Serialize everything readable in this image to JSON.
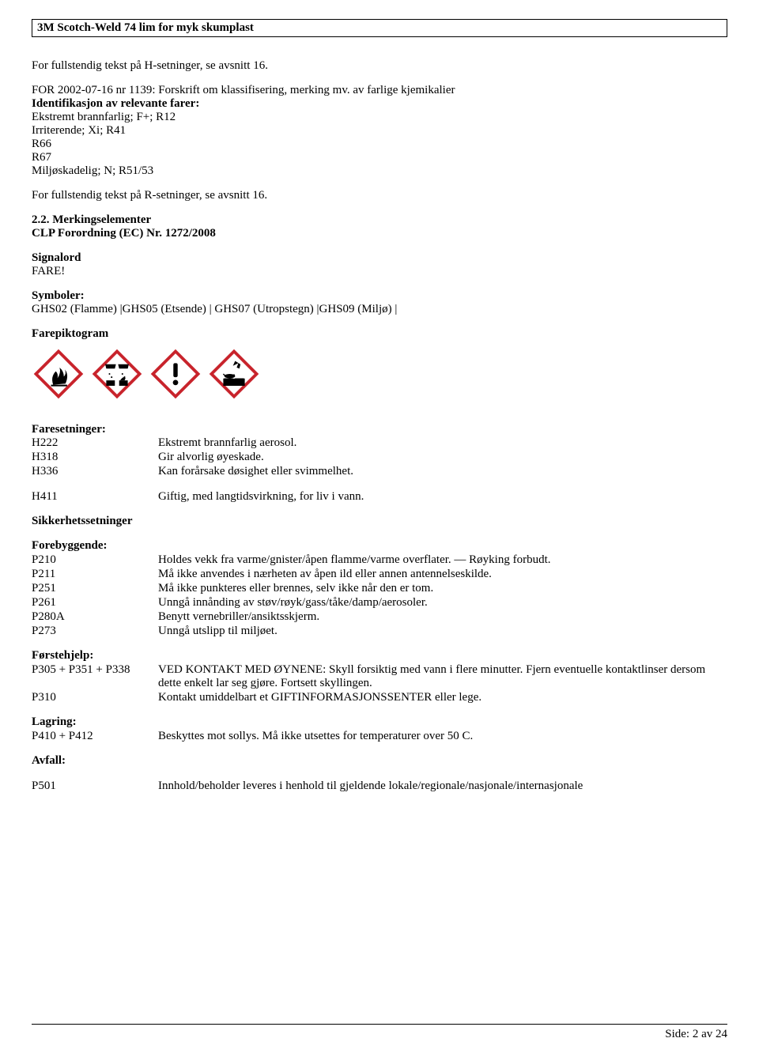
{
  "header": {
    "title": "3M Scotch-Weld 74 lim for myk skumplast"
  },
  "intro": {
    "line1": "For fullstendig tekst på H-setninger, se avsnitt 16.",
    "line2": "FOR 2002-07-16 nr 1139: Forskrift om klassifisering, merking mv. av farlige kjemikalier",
    "ident_heading": "Identifikasjon av relevante farer:",
    "ident_lines": [
      "Ekstremt brannfarlig; F+; R12",
      "Irriterende; Xi; R41",
      "R66",
      "R67",
      "Miljøskadelig; N; R51/53"
    ],
    "line3": "For fullstendig tekst på R-setninger, se avsnitt 16."
  },
  "marking": {
    "heading": "2.2. Merkingselementer",
    "subheading": "CLP Forordning (EC) Nr. 1272/2008",
    "signalord_label": "Signalord",
    "signalord_value": "FARE!",
    "symboler_label": "Symboler:",
    "symboler_value": "GHS02 (Flamme) |GHS05 (Etsende) |  GHS07 (Utropstegn) |GHS09 (Miljø) |",
    "farepiktogram_label": "Farepiktogram"
  },
  "pictograms": {
    "border_color": "#c8232b",
    "inner_color": "#ffffff",
    "icon_color": "#000000",
    "items": [
      "flame",
      "corrosion",
      "exclamation",
      "environment"
    ]
  },
  "hazard": {
    "heading": "Faresetninger:",
    "rows": [
      {
        "code": "H222",
        "desc": "Ekstremt brannfarlig aerosol."
      },
      {
        "code": "H318",
        "desc": "Gir alvorlig øyeskade."
      },
      {
        "code": "H336",
        "desc": "Kan forårsake døsighet eller svimmelhet."
      }
    ],
    "extra": {
      "code": "H411",
      "desc": "Giftig, med langtidsvirkning, for liv i vann."
    }
  },
  "safety": {
    "heading": "Sikkerhetssetninger",
    "groups": [
      {
        "title": "Forebyggende:",
        "rows": [
          {
            "code": "P210",
            "desc": "Holdes vekk fra varme/gnister/åpen flamme/varme overflater. — Røyking forbudt."
          },
          {
            "code": "P211",
            "desc": "Må ikke anvendes i nærheten av åpen ild eller annen antennelseskilde."
          },
          {
            "code": "P251",
            "desc": "Må ikke punkteres eller brennes, selv ikke når den er tom."
          },
          {
            "code": "P261",
            "desc": "Unngå innånding av støv/røyk/gass/tåke/damp/aerosoler."
          },
          {
            "code": "P280A",
            "desc": "Benytt vernebriller/ansiktsskjerm."
          },
          {
            "code": "P273",
            "desc": "Unngå utslipp til miljøet."
          }
        ]
      },
      {
        "title": "Førstehjelp:",
        "rows": [
          {
            "code": "P305 + P351 + P338",
            "desc": "VED KONTAKT MED ØYNENE: Skyll forsiktig med vann i flere minutter. Fjern eventuelle kontaktlinser dersom dette enkelt lar seg gjøre. Fortsett skyllingen."
          },
          {
            "code": "P310",
            "desc": "Kontakt umiddelbart et GIFTINFORMASJONSSENTER eller lege."
          }
        ]
      },
      {
        "title": "Lagring:",
        "rows": [
          {
            "code": "P410 + P412",
            "desc": "Beskyttes mot sollys. Må ikke utsettes for temperaturer over 50 C."
          }
        ]
      },
      {
        "title": "Avfall:",
        "rows": [
          {
            "code": "P501",
            "desc": "Innhold/beholder leveres i henhold til gjeldende lokale/regionale/nasjonale/internasjonale"
          }
        ],
        "gap_before_rows": true
      }
    ]
  },
  "footer": {
    "text": "Side: 2 av  24"
  }
}
